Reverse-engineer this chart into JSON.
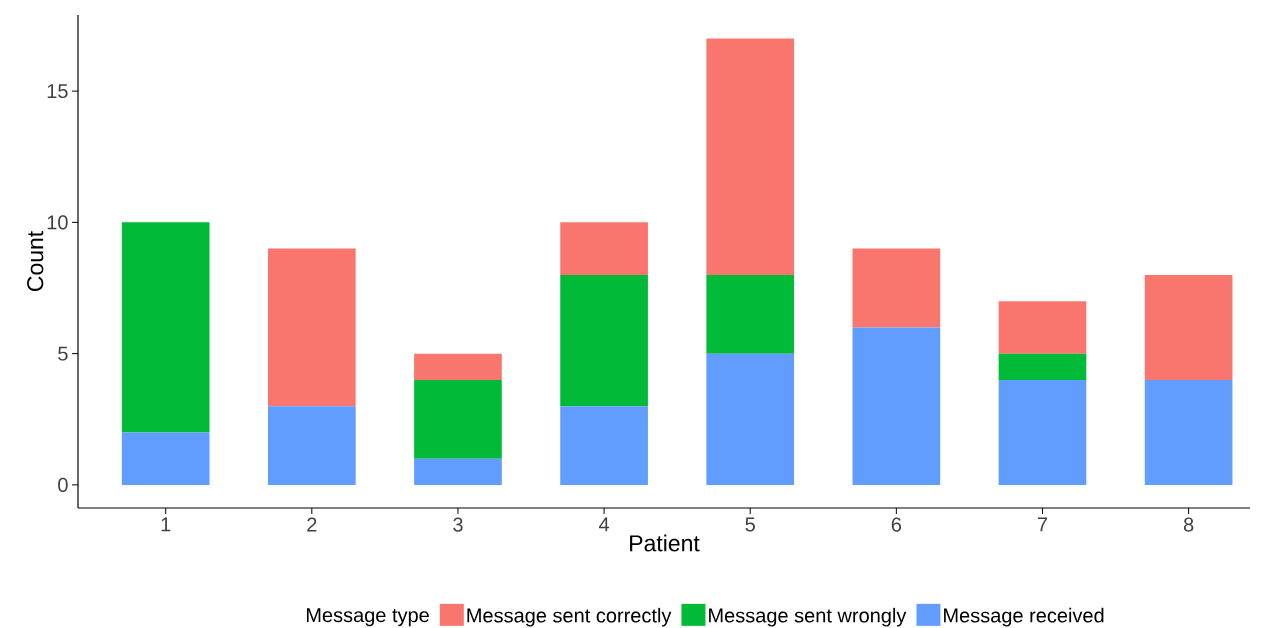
{
  "chart_data": {
    "type": "bar",
    "stacked": true,
    "xlabel": "Patient",
    "ylabel": "Count",
    "legend_title": "Message type",
    "categories": [
      "1",
      "2",
      "3",
      "4",
      "5",
      "6",
      "7",
      "8"
    ],
    "series": [
      {
        "name": "Message received",
        "color": "#619cff",
        "values": [
          2,
          3,
          1,
          3,
          5,
          6,
          4,
          4
        ]
      },
      {
        "name": "Message sent wrongly",
        "color": "#00ba38",
        "values": [
          8,
          0,
          3,
          5,
          3,
          0,
          1,
          0
        ]
      },
      {
        "name": "Message sent correctly",
        "color": "#f8766d",
        "values": [
          0,
          6,
          1,
          2,
          9,
          3,
          2,
          4
        ]
      }
    ],
    "ylim": [
      -0.88,
      17.9
    ],
    "yticks": [
      0,
      5,
      10,
      15
    ],
    "grid": false,
    "legend": "bottom"
  }
}
